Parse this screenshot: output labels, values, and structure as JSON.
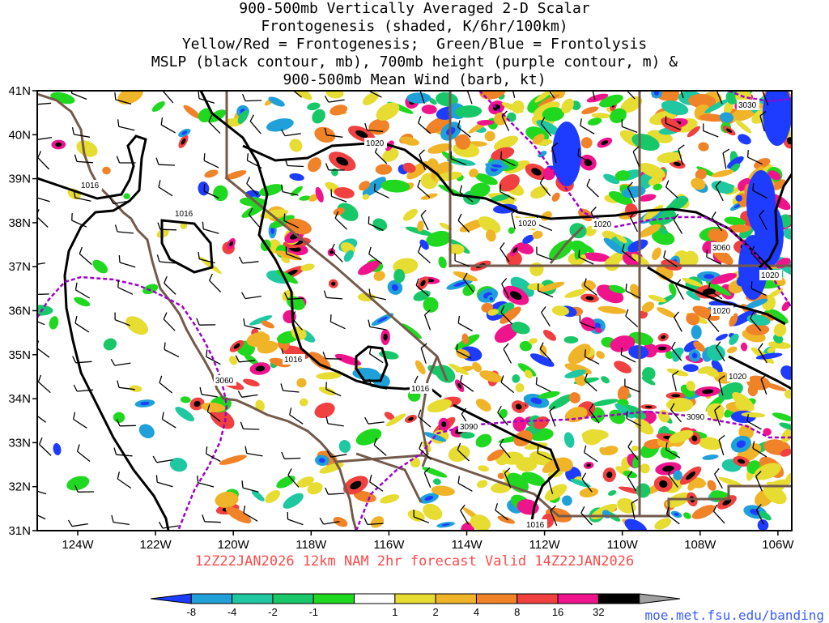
{
  "title": {
    "line1": "900-500mb Vertically Averaged 2-D Scalar",
    "line2": "Frontogenesis (shaded, K/6hr/100km)",
    "line3": "Yellow/Red = Frontogenesis;  Green/Blue = Frontolysis",
    "line4": "MSLP (black contour, mb), 700mb height (purple contour, m) &",
    "line5": "900-500mb Mean Wind (barb, kt)"
  },
  "axes": {
    "lat_labels": [
      "41N",
      "40N",
      "39N",
      "38N",
      "37N",
      "36N",
      "35N",
      "34N",
      "33N",
      "32N",
      "31N"
    ],
    "lon_labels": [
      "124W",
      "122W",
      "120W",
      "118W",
      "116W",
      "114W",
      "112W",
      "110W",
      "108W",
      "106W"
    ]
  },
  "contour_labels": {
    "mslp": [
      "1016",
      "1016",
      "1016",
      "1016",
      "1016",
      "1020",
      "1020",
      "1020",
      "1020",
      "1020",
      "1020"
    ],
    "height": [
      "3030",
      "3060",
      "3060",
      "3090",
      "3090"
    ]
  },
  "colorbar": {
    "labels": [
      "-8",
      "-4",
      "-2",
      "-1",
      "1",
      "2",
      "4",
      "8",
      "16",
      "32"
    ],
    "colors": [
      "#1e3cff",
      "#1fa0d8",
      "#1fc8a0",
      "#18c868",
      "#20d820",
      "#ffffff",
      "#e6dc32",
      "#f0b428",
      "#f08228",
      "#f04040",
      "#f0148c",
      "#000000",
      "#a0a0a0"
    ]
  },
  "footer": "12Z22JAN2026 12km NAM 2hr forecast Valid 14Z22JAN2026",
  "url": "moe.met.fsu.edu/banding",
  "colors": {
    "mslp_contour": "#000000",
    "height_contour": "#a000c8",
    "borders": "#735a4b",
    "footer_text": "#ff4a4a",
    "url_text": "#3a5cff"
  }
}
